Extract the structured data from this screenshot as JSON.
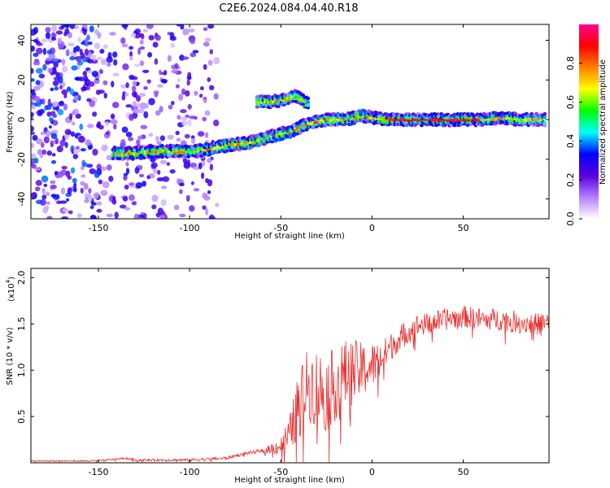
{
  "title": "C2E6.2024.084.04.40.R18",
  "chart_data": [
    {
      "type": "heatmap",
      "xlabel": "Height of straight line (km)",
      "ylabel": "Frequency (Hz)",
      "xlim": [
        -187,
        97
      ],
      "ylim": [
        -50,
        48
      ],
      "xticks": [
        -150,
        -100,
        -50,
        0,
        50
      ],
      "yticks": [
        -40,
        -20,
        0,
        20,
        40
      ],
      "colorbar": {
        "label": "Normalized spectral amplitude",
        "range": [
          0.0,
          1.0
        ],
        "ticks": [
          "0.0",
          "0.2",
          "0.4",
          "0.6",
          "0.8"
        ],
        "colors": [
          "#ffffff",
          "#b37fff",
          "#5a00e0",
          "#0000ff",
          "#00ffff",
          "#00ff00",
          "#ffff00",
          "#ff8000",
          "#ff0000",
          "#ff0090"
        ]
      },
      "ridge": {
        "x": [
          -142,
          -130,
          -120,
          -110,
          -100,
          -90,
          -80,
          -70,
          -60,
          -50,
          -45,
          -40,
          -35,
          -30,
          -25,
          -20,
          -15,
          -10,
          -5,
          0,
          10,
          20,
          30,
          40,
          50,
          60,
          70,
          80,
          95
        ],
        "y": [
          -17,
          -17,
          -16,
          -16,
          -16,
          -15,
          -13,
          -12,
          -10,
          -7,
          -6,
          -4,
          -2,
          -1,
          0,
          0,
          0,
          1,
          2,
          1,
          0,
          0,
          0,
          0,
          0,
          0,
          1,
          0,
          0
        ]
      },
      "upper_branch": {
        "x": [
          -63,
          -55,
          -48,
          -42,
          -38,
          -35
        ],
        "y": [
          9,
          9,
          10,
          12,
          10,
          8
        ]
      },
      "noise_region_x": [
        -187,
        -85
      ]
    },
    {
      "type": "line",
      "xlabel": "Height of straight line (km)",
      "ylabel": "SNR (10 * v/v)",
      "y_multiplier": "(x10",
      "y_multiplier_exp": "4",
      "xlim": [
        -187,
        97
      ],
      "ylim": [
        0,
        2.1
      ],
      "xticks": [
        -150,
        -100,
        -50,
        0,
        50
      ],
      "yticks": [
        "0.5",
        "1.0",
        "1.5",
        "2.0"
      ],
      "line_color": "#e83030",
      "series_envelope": {
        "x": [
          -187,
          -150,
          -135,
          -130,
          -100,
          -80,
          -70,
          -60,
          -50,
          -45,
          -40,
          -35,
          -30,
          -25,
          -20,
          -15,
          -10,
          -5,
          0,
          5,
          10,
          15,
          20,
          25,
          30,
          40,
          50,
          60,
          70,
          80,
          90,
          97
        ],
        "y": [
          0.02,
          0.02,
          0.05,
          0.03,
          0.03,
          0.05,
          0.1,
          0.13,
          0.18,
          0.3,
          0.65,
          0.85,
          0.8,
          0.75,
          0.85,
          0.95,
          0.98,
          1.0,
          1.05,
          1.12,
          1.25,
          1.35,
          1.42,
          1.48,
          1.5,
          1.55,
          1.58,
          1.55,
          1.55,
          1.52,
          1.5,
          1.52
        ]
      },
      "noise_amplitude": {
        "x": [
          -187,
          -60,
          -50,
          -40,
          -30,
          -20,
          -10,
          0,
          10,
          30,
          97
        ],
        "y": [
          0.005,
          0.02,
          0.1,
          0.35,
          0.45,
          0.4,
          0.35,
          0.25,
          0.15,
          0.12,
          0.12
        ]
      }
    }
  ]
}
